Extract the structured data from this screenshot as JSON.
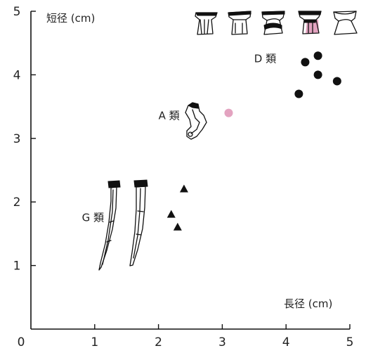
{
  "chart_data": {
    "type": "scatter",
    "title": "",
    "xlabel": "長径 (cm)",
    "ylabel": "短径 (cm)",
    "xlim": [
      0,
      5
    ],
    "ylim": [
      0,
      5
    ],
    "x_ticks": [
      "0",
      "1",
      "2",
      "3",
      "4",
      "5"
    ],
    "y_ticks": [
      "1",
      "2",
      "3",
      "4",
      "5"
    ],
    "grid": false,
    "series": [
      {
        "name": "D 類",
        "marker": "circle",
        "color": "#111111",
        "points": [
          {
            "x": 4.2,
            "y": 3.7
          },
          {
            "x": 4.3,
            "y": 4.2
          },
          {
            "x": 4.5,
            "y": 4.3
          },
          {
            "x": 4.5,
            "y": 4.0
          },
          {
            "x": 4.8,
            "y": 3.9
          }
        ]
      },
      {
        "name": "A 類",
        "marker": "circle",
        "color": "#e3a3c0",
        "points": [
          {
            "x": 3.1,
            "y": 3.4
          }
        ]
      },
      {
        "name": "G 類",
        "marker": "triangle",
        "color": "#111111",
        "points": [
          {
            "x": 2.2,
            "y": 1.8
          },
          {
            "x": 2.4,
            "y": 2.2
          },
          {
            "x": 2.3,
            "y": 1.6
          }
        ]
      }
    ],
    "annotations": [
      {
        "text": "D 類",
        "x": 3.5,
        "y": 4.2
      },
      {
        "text": "A 類",
        "x": 2.0,
        "y": 3.3
      },
      {
        "text": "G 類",
        "x": 0.8,
        "y": 1.7
      }
    ],
    "artifact_illustrations": {
      "D 類": [
        "bone-tool-1",
        "bone-tool-2",
        "bone-tool-3",
        "bone-tool-4-pink",
        "bone-tool-5"
      ],
      "A 類": [
        "bent-bone-tool"
      ],
      "G 類": [
        "long-needle-1",
        "long-needle-2"
      ]
    }
  }
}
